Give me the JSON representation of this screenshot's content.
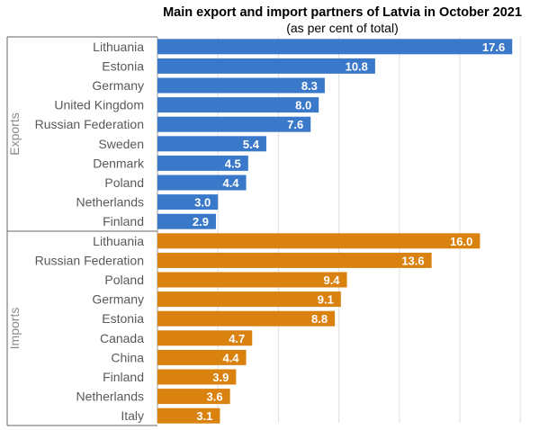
{
  "chart_data": {
    "type": "bar",
    "orientation": "horizontal",
    "title": "Main export and import partners of Latvia in October 2021",
    "subtitle": "(as per cent of total)",
    "xlim": [
      0,
      18
    ],
    "grid": true,
    "colors": {
      "exports": "#3a78c9",
      "imports": "#d9820f"
    },
    "groups": [
      {
        "name": "Exports",
        "categories": [
          "Lithuania",
          "Estonia",
          "Germany",
          "United Kingdom",
          "Russian Federation",
          "Sweden",
          "Denmark",
          "Poland",
          "Netherlands",
          "Finland"
        ],
        "values": [
          17.6,
          10.8,
          8.3,
          8.0,
          7.6,
          5.4,
          4.5,
          4.4,
          3.0,
          2.9
        ],
        "labels": [
          "17.6",
          "10.8",
          "8.3",
          "8.0",
          "7.6",
          "5.4",
          "4.5",
          "4.4",
          "3.0",
          "2.9"
        ]
      },
      {
        "name": "Imports",
        "categories": [
          "Lithuania",
          "Russian Federation",
          "Poland",
          "Germany",
          "Estonia",
          "Canada",
          "China",
          "Finland",
          "Netherlands",
          "Italy"
        ],
        "values": [
          16.0,
          13.6,
          9.4,
          9.1,
          8.8,
          4.7,
          4.4,
          3.9,
          3.6,
          3.1
        ],
        "labels": [
          "16.0",
          "13.6",
          "9.4",
          "9.1",
          "8.8",
          "4.7",
          "4.4",
          "3.9",
          "3.6",
          "3.1"
        ]
      }
    ]
  }
}
